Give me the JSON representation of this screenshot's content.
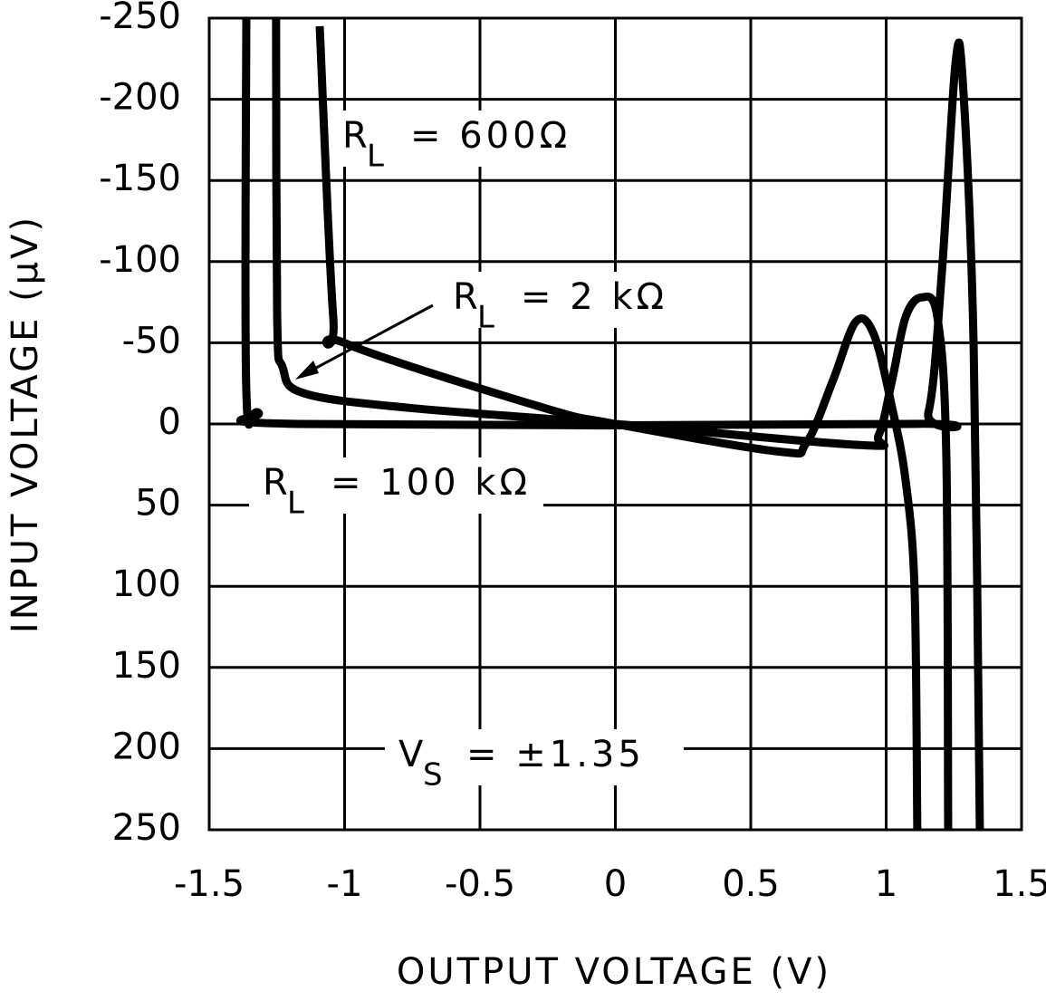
{
  "chart_data": {
    "type": "line",
    "x_label": "OUTPUT VOLTAGE (V)",
    "y_label": "INPUT VOLTAGE (µV)",
    "xlim": [
      -1.5,
      1.5
    ],
    "xticks": [
      -1.5,
      -1,
      -0.5,
      0,
      0.5,
      1,
      1.5
    ],
    "ylim": [
      -250,
      250
    ],
    "yticks": [
      -250,
      -200,
      -150,
      -100,
      -50,
      0,
      50,
      100,
      150,
      200,
      250
    ],
    "y_inverted": true,
    "grid": true,
    "series": [
      {
        "color": "#000000",
        "x": [
          -1.092,
          -1.042,
          -1.002,
          -0.266,
          0.0,
          0.604,
          0.704,
          0.804,
          0.888,
          0.955,
          1.022,
          1.072,
          1.105,
          1.115
        ],
        "values": [
          -245,
          -66,
          -50,
          -10,
          0,
          17,
          12,
          -27,
          -63,
          -55,
          -10,
          35,
          102,
          250
        ]
      },
      {
        "color": "#000000",
        "x": [
          -1.253,
          -1.249,
          -1.229,
          -1.152,
          -0.768,
          0.0,
          0.905,
          0.972,
          1.022,
          1.072,
          1.132,
          1.189,
          1.222,
          1.229
        ],
        "values": [
          -250,
          -66,
          -35,
          -19,
          -10,
          0,
          13,
          7,
          -27,
          -66,
          -78,
          -66,
          18,
          250
        ]
      },
      {
        "color": "#000000",
        "x": [
          -1.363,
          -1.363,
          -1.319,
          -1.169,
          1.072,
          1.156,
          1.206,
          1.256,
          1.283,
          1.323,
          1.346
        ],
        "values": [
          -250,
          -21,
          -7,
          0,
          0,
          -7,
          -94,
          -222,
          -211,
          -49,
          250
        ]
      }
    ],
    "annotations": [
      {
        "text": "R",
        "subscript": "L",
        "suffix": "= 600Ω"
      },
      {
        "text": "R",
        "subscript": "L",
        "suffix": "= 2 kΩ"
      },
      {
        "text": "R",
        "subscript": "L",
        "suffix": "= 100 kΩ"
      },
      {
        "text": "V",
        "subscript": "S",
        "suffix": "= ±1.35"
      }
    ]
  }
}
